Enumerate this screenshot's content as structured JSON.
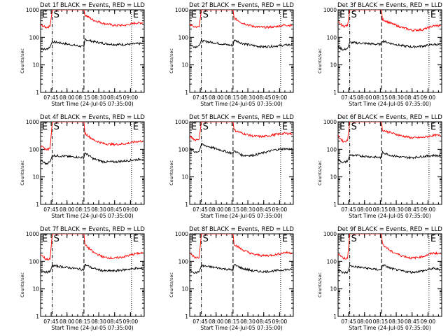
{
  "figure": {
    "y_axis_label": "Counts/sec",
    "x_axis_label": "Start Time (24-Jul-05 07:35:00)",
    "marker_start": "S",
    "marker_end": "E",
    "colors": {
      "events": "#000000",
      "lld": "#ff0000",
      "axes": "#000000",
      "background": "#ffffff"
    }
  },
  "chart_data": [
    {
      "type": "line",
      "title": "Det 1f  BLACK = Events, RED = LLD",
      "xlabel": "Start Time (24-Jul-05 07:35:00)",
      "ylabel": "Counts/sec",
      "xlim": [
        "07:35",
        "09:13"
      ],
      "ylim": [
        1,
        1000
      ],
      "yscale": "log",
      "y_ticks": [
        "1",
        "10",
        "100",
        "1000"
      ],
      "x_ticks": [
        "07:45",
        "08:00",
        "08:15",
        "08:30",
        "08:45",
        "09:00"
      ],
      "series": [
        {
          "name": "Events",
          "color": "#000000",
          "x": [
            "07:35",
            "07:40",
            "07:44",
            "07:46",
            "08:16",
            "08:17",
            "08:25",
            "08:35",
            "08:45",
            "08:55",
            "09:05",
            "09:12"
          ],
          "y": [
            40,
            36,
            45,
            70,
            45,
            85,
            70,
            60,
            55,
            55,
            58,
            60
          ]
        },
        {
          "name": "LLD",
          "color": "#ff0000",
          "x": [
            "07:35",
            "07:40",
            "07:44",
            "07:46",
            "08:16",
            "08:17",
            "08:25",
            "08:35",
            "08:45",
            "08:55",
            "09:05",
            "09:12"
          ],
          "y": [
            280,
            230,
            250,
            1000,
            1000,
            650,
            420,
            320,
            270,
            275,
            330,
            340
          ]
        }
      ],
      "vlines": [
        {
          "x": "07:46",
          "style": "dash-dot"
        },
        {
          "x": "08:16",
          "style": "dashed"
        },
        {
          "x": "09:01",
          "style": "dotted"
        }
      ]
    },
    {
      "type": "line",
      "title": "Det 2f  BLACK = Events, RED = LLD",
      "xlabel": "Start Time (24-Jul-05 07:35:00)",
      "ylabel": "Counts/sec",
      "xlim": [
        "07:35",
        "09:13"
      ],
      "ylim": [
        1,
        1000
      ],
      "yscale": "log",
      "y_ticks": [
        "1",
        "10",
        "100",
        "1000"
      ],
      "x_ticks": [
        "07:45",
        "08:00",
        "08:15",
        "08:30",
        "08:45",
        "09:00"
      ],
      "series": [
        {
          "name": "Events",
          "color": "#000000",
          "x": [
            "07:35",
            "07:40",
            "07:44",
            "07:46",
            "08:16",
            "08:17",
            "08:25",
            "08:35",
            "08:45",
            "08:55",
            "09:05",
            "09:12"
          ],
          "y": [
            55,
            45,
            50,
            75,
            50,
            80,
            60,
            50,
            45,
            48,
            52,
            55
          ]
        },
        {
          "name": "LLD",
          "color": "#ff0000",
          "x": [
            "07:35",
            "07:40",
            "07:44",
            "07:46",
            "08:16",
            "08:17",
            "08:25",
            "08:35",
            "08:45",
            "08:55",
            "09:05",
            "09:12"
          ],
          "y": [
            300,
            230,
            240,
            1000,
            1000,
            500,
            330,
            250,
            230,
            240,
            280,
            270
          ]
        }
      ],
      "vlines": [
        {
          "x": "07:46",
          "style": "dash-dot"
        },
        {
          "x": "08:16",
          "style": "dashed"
        },
        {
          "x": "09:01",
          "style": "dotted"
        }
      ]
    },
    {
      "type": "line",
      "title": "Det 3f  BLACK = Events, RED = LLD",
      "xlabel": "Start Time (24-Jul-05 07:35:00)",
      "ylabel": "Counts/sec",
      "xlim": [
        "07:35",
        "09:13"
      ],
      "ylim": [
        1,
        1000
      ],
      "yscale": "log",
      "y_ticks": [
        "1",
        "10",
        "100",
        "1000"
      ],
      "x_ticks": [
        "07:45",
        "08:00",
        "08:15",
        "08:30",
        "08:45",
        "09:00"
      ],
      "series": [
        {
          "name": "Events",
          "color": "#000000",
          "x": [
            "07:35",
            "07:40",
            "07:44",
            "07:46",
            "08:16",
            "08:17",
            "08:25",
            "08:35",
            "08:45",
            "08:55",
            "09:05",
            "09:12"
          ],
          "y": [
            45,
            35,
            40,
            65,
            55,
            75,
            60,
            50,
            45,
            48,
            55,
            55
          ]
        },
        {
          "name": "LLD",
          "color": "#ff0000",
          "x": [
            "07:35",
            "07:40",
            "07:44",
            "07:46",
            "08:16",
            "08:17",
            "08:25",
            "08:35",
            "08:45",
            "08:55",
            "09:05",
            "09:12"
          ],
          "y": [
            350,
            250,
            270,
            1000,
            1000,
            450,
            320,
            230,
            180,
            190,
            260,
            270
          ]
        }
      ],
      "vlines": [
        {
          "x": "07:46",
          "style": "dash-dot"
        },
        {
          "x": "08:16",
          "style": "dashed"
        },
        {
          "x": "09:01",
          "style": "dotted"
        }
      ]
    },
    {
      "type": "line",
      "title": "Det 4f  BLACK = Events, RED = LLD",
      "xlabel": "Start Time (24-Jul-05 07:35:00)",
      "ylabel": "Counts/sec",
      "xlim": [
        "07:35",
        "09:13"
      ],
      "ylim": [
        1,
        1000
      ],
      "yscale": "log",
      "y_ticks": [
        "1",
        "10",
        "100",
        "1000"
      ],
      "x_ticks": [
        "07:45",
        "08:00",
        "08:15",
        "08:30",
        "08:45",
        "09:00"
      ],
      "series": [
        {
          "name": "Events",
          "color": "#000000",
          "x": [
            "07:35",
            "07:40",
            "07:44",
            "07:46",
            "08:16",
            "08:17",
            "08:25",
            "08:35",
            "08:45",
            "08:55",
            "09:05",
            "09:12"
          ],
          "y": [
            40,
            30,
            35,
            60,
            50,
            75,
            45,
            35,
            35,
            38,
            42,
            45
          ]
        },
        {
          "name": "LLD",
          "color": "#ff0000",
          "x": [
            "07:35",
            "07:40",
            "07:44",
            "07:46",
            "08:16",
            "08:17",
            "08:25",
            "08:35",
            "08:45",
            "08:55",
            "09:05",
            "09:12"
          ],
          "y": [
            130,
            100,
            105,
            1000,
            1000,
            380,
            220,
            160,
            150,
            160,
            190,
            200
          ]
        }
      ],
      "vlines": [
        {
          "x": "07:46",
          "style": "dash-dot"
        },
        {
          "x": "08:16",
          "style": "dashed"
        },
        {
          "x": "09:01",
          "style": "dotted"
        }
      ]
    },
    {
      "type": "line",
      "title": "Det 5f  BLACK = Events, RED = LLD",
      "xlabel": "Start Time (24-Jul-05 07:35:00)",
      "ylabel": "Counts/sec",
      "xlim": [
        "07:35",
        "09:13"
      ],
      "ylim": [
        1,
        1000
      ],
      "yscale": "log",
      "y_ticks": [
        "1",
        "10",
        "100",
        "1000"
      ],
      "x_ticks": [
        "07:45",
        "08:00",
        "08:15",
        "08:30",
        "08:45",
        "09:00"
      ],
      "series": [
        {
          "name": "Events",
          "color": "#000000",
          "x": [
            "07:35",
            "07:40",
            "07:44",
            "07:46",
            "08:16",
            "08:17",
            "08:25",
            "08:35",
            "08:45",
            "08:55",
            "09:05",
            "09:12"
          ],
          "y": [
            110,
            80,
            85,
            150,
            70,
            90,
            60,
            60,
            75,
            95,
            105,
            100
          ]
        },
        {
          "name": "LLD",
          "color": "#ff0000",
          "x": [
            "07:35",
            "07:40",
            "07:44",
            "07:46",
            "08:16",
            "08:17",
            "08:25",
            "08:35",
            "08:45",
            "08:55",
            "09:05",
            "09:12"
          ],
          "y": [
            300,
            220,
            240,
            1000,
            1000,
            500,
            380,
            300,
            290,
            340,
            380,
            370
          ]
        }
      ],
      "vlines": [
        {
          "x": "07:46",
          "style": "dash-dot"
        },
        {
          "x": "08:16",
          "style": "dashed"
        },
        {
          "x": "09:01",
          "style": "dotted"
        }
      ]
    },
    {
      "type": "line",
      "title": "Det 6f  BLACK = Events, RED = LLD",
      "xlabel": "Start Time (24-Jul-05 07:35:00)",
      "ylabel": "Counts/sec",
      "xlim": [
        "07:35",
        "09:13"
      ],
      "ylim": [
        1,
        1000
      ],
      "yscale": "log",
      "y_ticks": [
        "1",
        "10",
        "100",
        "1000"
      ],
      "x_ticks": [
        "07:45",
        "08:00",
        "08:15",
        "08:30",
        "08:45",
        "09:00"
      ],
      "series": [
        {
          "name": "Events",
          "color": "#000000",
          "x": [
            "07:35",
            "07:40",
            "07:44",
            "07:46",
            "08:16",
            "08:17",
            "08:25",
            "08:35",
            "08:45",
            "08:55",
            "09:05",
            "09:12"
          ],
          "y": [
            42,
            33,
            38,
            62,
            50,
            78,
            60,
            52,
            50,
            55,
            60,
            58
          ]
        },
        {
          "name": "LLD",
          "color": "#ff0000",
          "x": [
            "07:35",
            "07:40",
            "07:44",
            "07:46",
            "08:16",
            "08:17",
            "08:25",
            "08:35",
            "08:45",
            "08:55",
            "09:05",
            "09:12"
          ],
          "y": [
            300,
            190,
            210,
            1000,
            1000,
            500,
            400,
            310,
            260,
            270,
            320,
            320
          ]
        }
      ],
      "vlines": [
        {
          "x": "07:46",
          "style": "dash-dot"
        },
        {
          "x": "08:16",
          "style": "dashed"
        },
        {
          "x": "09:01",
          "style": "dotted"
        }
      ]
    },
    {
      "type": "line",
      "title": "Det 7f  BLACK = Events, RED = LLD",
      "xlabel": "Start Time (24-Jul-05 07:35:00)",
      "ylabel": "Counts/sec",
      "xlim": [
        "07:35",
        "09:13"
      ],
      "ylim": [
        1,
        1000
      ],
      "yscale": "log",
      "y_ticks": [
        "1",
        "10",
        "100",
        "1000"
      ],
      "x_ticks": [
        "07:45",
        "08:00",
        "08:15",
        "08:30",
        "08:45",
        "09:00"
      ],
      "series": [
        {
          "name": "Events",
          "color": "#000000",
          "x": [
            "07:35",
            "07:40",
            "07:44",
            "07:46",
            "08:16",
            "08:17",
            "08:25",
            "08:35",
            "08:45",
            "08:55",
            "09:05",
            "09:12"
          ],
          "y": [
            50,
            40,
            42,
            70,
            50,
            75,
            55,
            45,
            45,
            50,
            55,
            55
          ]
        },
        {
          "name": "LLD",
          "color": "#ff0000",
          "x": [
            "07:35",
            "07:40",
            "07:44",
            "07:46",
            "08:16",
            "08:17",
            "08:25",
            "08:35",
            "08:45",
            "08:55",
            "09:05",
            "09:12"
          ],
          "y": [
            180,
            120,
            120,
            1000,
            1000,
            400,
            210,
            140,
            130,
            150,
            190,
            200
          ]
        }
      ],
      "vlines": [
        {
          "x": "07:46",
          "style": "dash-dot"
        },
        {
          "x": "08:16",
          "style": "dashed"
        },
        {
          "x": "09:01",
          "style": "dotted"
        }
      ]
    },
    {
      "type": "line",
      "title": "Det 8f  BLACK = Events, RED = LLD",
      "xlabel": "Start Time (24-Jul-05 07:35:00)",
      "ylabel": "Counts/sec",
      "xlim": [
        "07:35",
        "09:13"
      ],
      "ylim": [
        1,
        1000
      ],
      "yscale": "log",
      "y_ticks": [
        "1",
        "10",
        "100",
        "1000"
      ],
      "x_ticks": [
        "07:45",
        "08:00",
        "08:15",
        "08:30",
        "08:45",
        "09:00"
      ],
      "series": [
        {
          "name": "Events",
          "color": "#000000",
          "x": [
            "07:35",
            "07:40",
            "07:44",
            "07:46",
            "08:16",
            "08:17",
            "08:25",
            "08:35",
            "08:45",
            "08:55",
            "09:05",
            "09:12"
          ],
          "y": [
            50,
            38,
            42,
            70,
            48,
            75,
            55,
            45,
            42,
            45,
            50,
            50
          ]
        },
        {
          "name": "LLD",
          "color": "#ff0000",
          "x": [
            "07:35",
            "07:40",
            "07:44",
            "07:46",
            "08:16",
            "08:17",
            "08:25",
            "08:35",
            "08:45",
            "08:55",
            "09:05",
            "09:12"
          ],
          "y": [
            200,
            140,
            140,
            1000,
            1000,
            420,
            260,
            180,
            160,
            170,
            210,
            200
          ]
        }
      ],
      "vlines": [
        {
          "x": "07:46",
          "style": "dash-dot"
        },
        {
          "x": "08:16",
          "style": "dashed"
        },
        {
          "x": "09:01",
          "style": "dotted"
        }
      ]
    },
    {
      "type": "line",
      "title": "Det 9f  BLACK = Events, RED = LLD",
      "xlabel": "Start Time (24-Jul-05 07:35:00)",
      "ylabel": "Counts/sec",
      "xlim": [
        "07:35",
        "09:13"
      ],
      "ylim": [
        1,
        1000
      ],
      "yscale": "log",
      "y_ticks": [
        "1",
        "10",
        "100",
        "1000"
      ],
      "x_ticks": [
        "07:45",
        "08:00",
        "08:15",
        "08:30",
        "08:45",
        "09:00"
      ],
      "series": [
        {
          "name": "Events",
          "color": "#000000",
          "x": [
            "07:35",
            "07:40",
            "07:44",
            "07:46",
            "08:16",
            "08:17",
            "08:25",
            "08:35",
            "08:45",
            "08:55",
            "09:05",
            "09:12"
          ],
          "y": [
            48,
            38,
            40,
            68,
            48,
            75,
            55,
            45,
            40,
            45,
            55,
            50
          ]
        },
        {
          "name": "LLD",
          "color": "#ff0000",
          "x": [
            "07:35",
            "07:40",
            "07:44",
            "07:46",
            "08:16",
            "08:17",
            "08:25",
            "08:35",
            "08:45",
            "08:55",
            "09:05",
            "09:12"
          ],
          "y": [
            190,
            130,
            130,
            1000,
            1000,
            420,
            230,
            160,
            130,
            150,
            200,
            190
          ]
        }
      ],
      "vlines": [
        {
          "x": "07:46",
          "style": "dash-dot"
        },
        {
          "x": "08:16",
          "style": "dashed"
        },
        {
          "x": "09:01",
          "style": "dotted"
        }
      ]
    }
  ]
}
